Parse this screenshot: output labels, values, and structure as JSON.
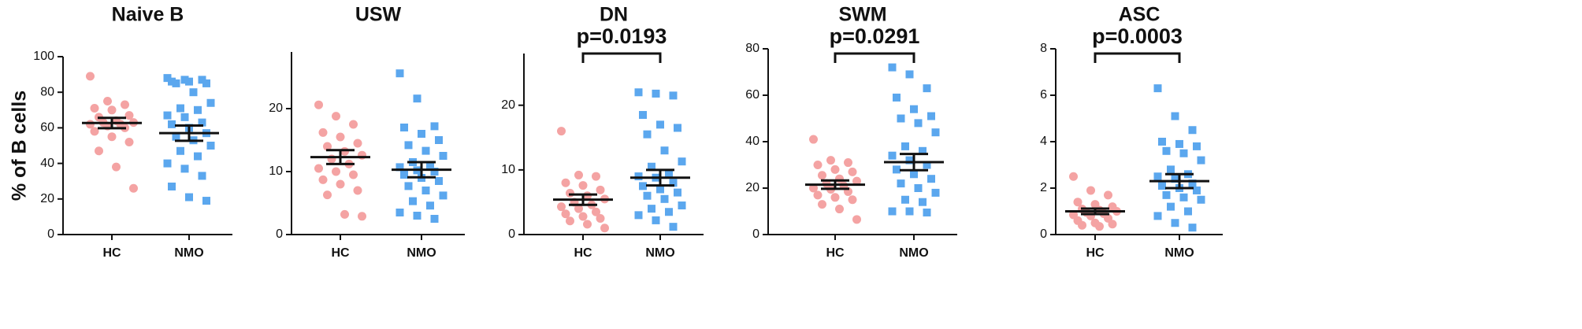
{
  "chart_data": [
    {
      "type": "dotplot",
      "title": "Naive B",
      "ylabel": "% of B cells",
      "categories": [
        "HC",
        "NMO"
      ],
      "groups": [
        {
          "color": "#f4a3a3",
          "marker": "circle",
          "values": [
            89,
            75,
            73,
            71,
            70,
            67,
            66,
            64,
            63,
            63,
            62,
            62,
            61,
            60,
            58,
            55,
            52,
            47,
            38,
            26
          ],
          "mean": 62.7,
          "sem": 2.9
        },
        {
          "color": "#5ba7ee",
          "marker": "square",
          "values": [
            88,
            87,
            87,
            86,
            86,
            85,
            85,
            80,
            74,
            71,
            70,
            67,
            66,
            63,
            62,
            60,
            57,
            55,
            53,
            50,
            47,
            44,
            40,
            37,
            33,
            27,
            21,
            19
          ],
          "mean": 57,
          "sem": 4.3
        }
      ],
      "ylim": [
        0,
        100
      ],
      "yticks": [
        0,
        20,
        40,
        60,
        80,
        100
      ]
    },
    {
      "type": "dotplot",
      "title": "USW",
      "categories": [
        "HC",
        "NMO"
      ],
      "groups": [
        {
          "color": "#f4a3a3",
          "marker": "circle",
          "values": [
            20.6,
            18.8,
            17.5,
            16.2,
            15.5,
            14.5,
            14,
            13.2,
            12.6,
            12,
            11.2,
            10.5,
            10,
            9.5,
            8.7,
            8,
            7,
            6.3,
            3.2,
            2.9
          ],
          "mean": 12.3,
          "sem": 1.1
        },
        {
          "color": "#5ba7ee",
          "marker": "square",
          "values": [
            25.6,
            21.6,
            17.2,
            17,
            16,
            15,
            14.2,
            13.3,
            12.5,
            11.5,
            11,
            10.7,
            10.2,
            10,
            9.5,
            9,
            8.5,
            7.7,
            7,
            6.2,
            5.3,
            4.6,
            3.5,
            3,
            2.5
          ],
          "mean": 10.3,
          "sem": 1.2
        }
      ],
      "ylim": [
        0,
        29
      ],
      "yticks": [
        0,
        10,
        20
      ]
    },
    {
      "type": "dotplot",
      "title": "DN",
      "annotation": "p=0.0193",
      "categories": [
        "HC",
        "NMO"
      ],
      "groups": [
        {
          "color": "#f4a3a3",
          "marker": "circle",
          "values": [
            16,
            9.2,
            9,
            8,
            7.6,
            6.9,
            6.4,
            6,
            5.5,
            5,
            4.6,
            4.3,
            4,
            3.5,
            3.2,
            2.8,
            2.5,
            2.1,
            1.6,
            1
          ],
          "mean": 5.4,
          "sem": 0.8
        },
        {
          "color": "#5ba7ee",
          "marker": "square",
          "values": [
            22,
            21.8,
            21.5,
            18.5,
            17,
            16.5,
            15.5,
            13,
            11.3,
            10.5,
            9.5,
            9,
            8.8,
            8,
            7.5,
            7,
            6.5,
            6,
            5.5,
            4.5,
            4,
            3.5,
            3,
            2.2,
            1.2
          ],
          "mean": 8.8,
          "sem": 1.2
        }
      ],
      "ylim": [
        0,
        28
      ],
      "yticks": [
        0,
        10,
        20
      ]
    },
    {
      "type": "dotplot",
      "title": "SWM",
      "annotation": "p=0.0291",
      "categories": [
        "HC",
        "NMO"
      ],
      "groups": [
        {
          "color": "#f4a3a3",
          "marker": "circle",
          "values": [
            41,
            32,
            31,
            30,
            28,
            27,
            25.5,
            24,
            23,
            22,
            21,
            20,
            19.5,
            18.5,
            17,
            16,
            15,
            13,
            11,
            6.5
          ],
          "mean": 21.5,
          "sem": 1.8
        },
        {
          "color": "#5ba7ee",
          "marker": "square",
          "values": [
            72,
            69,
            63,
            59,
            54,
            51,
            50,
            48,
            44,
            38,
            36,
            34,
            32,
            30,
            28,
            26,
            24,
            22,
            20,
            18,
            15,
            14,
            10,
            10,
            9.5
          ],
          "mean": 31.2,
          "sem": 3.5
        }
      ],
      "ylim": [
        0,
        80
      ],
      "yticks": [
        0,
        20,
        40,
        60,
        80
      ]
    },
    {
      "type": "dotplot",
      "title": "ASC",
      "annotation": "p=0.0003",
      "categories": [
        "HC",
        "NMO"
      ],
      "groups": [
        {
          "color": "#f4a3a3",
          "marker": "circle",
          "values": [
            2.5,
            1.9,
            1.7,
            1.4,
            1.3,
            1.2,
            1.1,
            1.05,
            1,
            0.95,
            0.9,
            0.85,
            0.8,
            0.7,
            0.6,
            0.5,
            0.45,
            0.4,
            0.35
          ],
          "mean": 1.0,
          "sem": 0.12
        },
        {
          "color": "#5ba7ee",
          "marker": "square",
          "values": [
            6.3,
            5.1,
            4.5,
            4,
            3.9,
            3.8,
            3.6,
            3.5,
            3.2,
            2.8,
            2.6,
            2.5,
            2.4,
            2.2,
            2.1,
            2,
            1.9,
            1.7,
            1.6,
            1.5,
            1.2,
            1,
            0.8,
            0.5,
            0.3
          ],
          "mean": 2.3,
          "sem": 0.3
        }
      ],
      "ylim": [
        0,
        8
      ],
      "yticks": [
        0,
        2,
        4,
        6,
        8
      ]
    }
  ]
}
